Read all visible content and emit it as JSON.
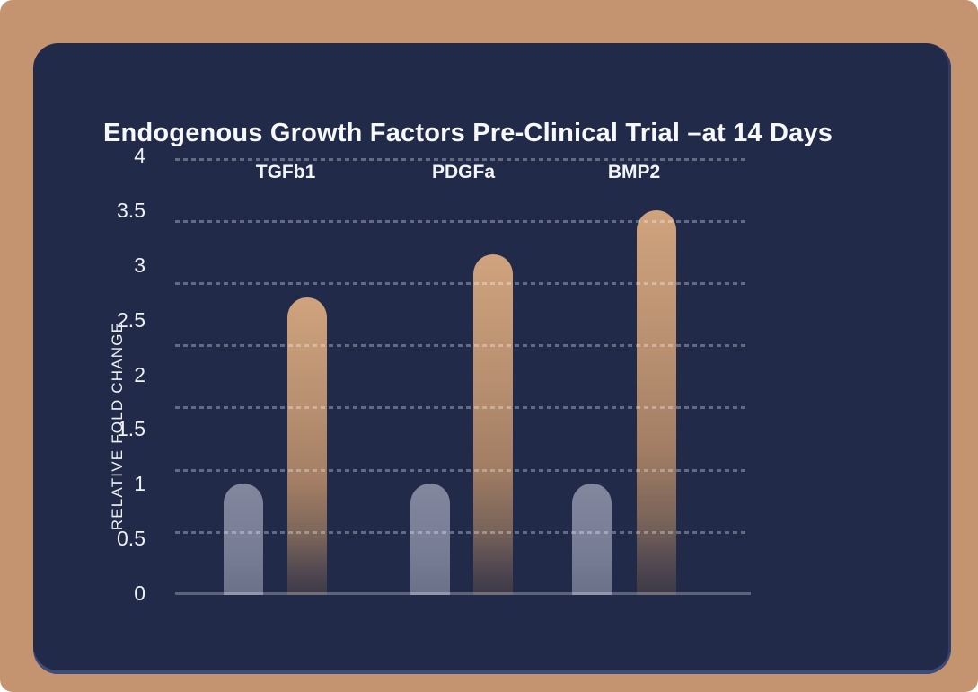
{
  "frame": {
    "background_color": "#c49471",
    "card_background_color": "#212b49",
    "card_edge_highlight_color": "#3e4c78"
  },
  "title": {
    "text": "Endogenous Growth Factors Pre-Clinical Trial –at 14 Days",
    "color": "#f7f8fa"
  },
  "chart_data": {
    "type": "bar",
    "title": "Endogenous Growth Factors Pre-Clinical Trial –at 14 Days",
    "xlabel": "",
    "ylabel": "RELATIVE FOLD CHANGE",
    "categories": [
      "TGFb1",
      "PDGFa",
      "BMP2"
    ],
    "series": [
      {
        "color": "#7e8399",
        "values": [
          1,
          1,
          1
        ]
      },
      {
        "color": "#c79b77",
        "values": [
          2.7,
          3.1,
          3.5
        ]
      }
    ],
    "ytick_labels": [
      "4",
      "3.5",
      "3",
      "2.5",
      "2",
      "1.5",
      "1",
      "0.5",
      "0"
    ],
    "ylim": [
      0,
      4
    ],
    "grid": {
      "style": "dashed",
      "orientation": "horizontal",
      "drawn_over_bars": true
    },
    "legend": {
      "visible": false
    },
    "colors": {
      "gridline": "rgba(255,255,255,0.30)",
      "axis_line": "rgba(255,255,255,0.27)",
      "tick_text": "#eef1f5",
      "category_text": "#f3f4f7"
    }
  }
}
